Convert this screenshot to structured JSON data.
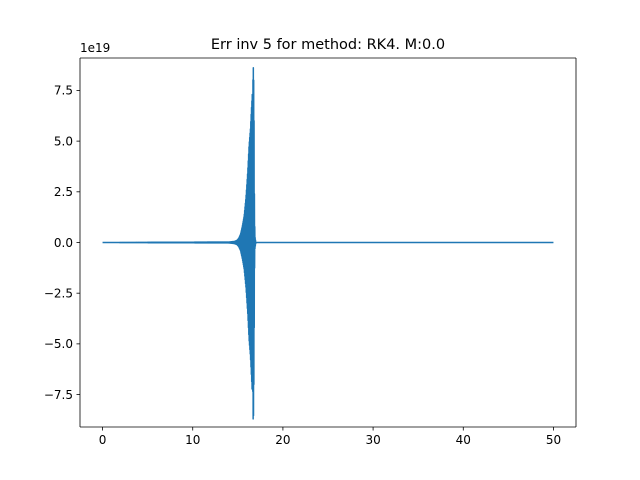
{
  "chart_data": {
    "type": "line",
    "title": "Err inv 5 for method: RK4. M:0.0",
    "xlabel": "",
    "ylabel": "",
    "y_offset_label": "1e19",
    "xlim": [
      -2.5,
      52.5
    ],
    "ylim": [
      -9.1,
      9.1
    ],
    "x_ticks": [
      0,
      10,
      20,
      30,
      40,
      50
    ],
    "x_tick_labels": [
      "0",
      "10",
      "20",
      "30",
      "40",
      "50"
    ],
    "y_ticks": [
      -7.5,
      -5.0,
      -2.5,
      0.0,
      2.5,
      5.0,
      7.5
    ],
    "y_tick_labels": [
      "−7.5",
      "−5.0",
      "−2.5",
      "0.0",
      "2.5",
      "5.0",
      "7.5"
    ],
    "grid": false,
    "series_color": "#1f77b4",
    "series": [
      {
        "x": [
          0,
          14.0,
          14.6,
          14.9,
          15.1,
          15.3,
          15.5,
          15.7,
          15.9,
          16.1,
          16.25,
          16.4,
          16.5,
          16.6,
          16.65,
          16.7,
          16.75,
          16.8,
          16.85,
          16.9,
          17.0,
          50
        ],
        "upper": [
          0,
          0.02,
          0.05,
          0.1,
          0.2,
          0.4,
          0.8,
          1.3,
          2.2,
          3.5,
          4.8,
          5.6,
          6.5,
          7.3,
          7.0,
          8.7,
          8.5,
          6.0,
          1.5,
          0.3,
          0,
          0
        ],
        "lower": [
          0,
          -0.02,
          -0.05,
          -0.1,
          -0.2,
          -0.4,
          -0.8,
          -1.3,
          -2.2,
          -3.5,
          -4.8,
          -5.6,
          -6.5,
          -7.4,
          -7.0,
          -8.7,
          -8.5,
          -6.0,
          -1.5,
          -0.3,
          0,
          0
        ]
      }
    ]
  }
}
